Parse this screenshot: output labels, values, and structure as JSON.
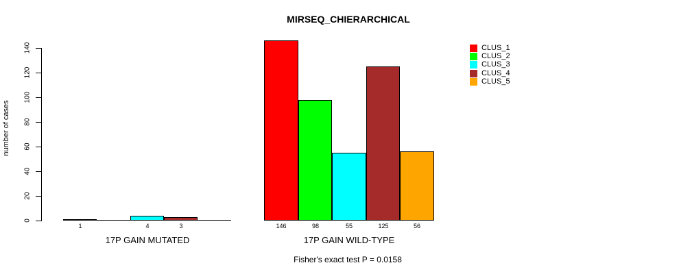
{
  "title": "MIRSEQ_CHIERARCHICAL",
  "footnote": "Fisher's exact test P = 0.0158",
  "chart_data": {
    "type": "bar",
    "title": "MIRSEQ_CHIERARCHICAL",
    "ylabel": "number of cases",
    "ylim": [
      0,
      140
    ],
    "yticks": [
      0,
      20,
      40,
      60,
      80,
      100,
      120,
      140
    ],
    "grid": false,
    "legend_position": "top-right",
    "legend": [
      {
        "label": "CLUS_1",
        "color": "#ff0000"
      },
      {
        "label": "CLUS_2",
        "color": "#00ff00"
      },
      {
        "label": "CLUS_3",
        "color": "#00ffff"
      },
      {
        "label": "CLUS_4",
        "color": "#a52a2a"
      },
      {
        "label": "CLUS_5",
        "color": "#ffa500"
      }
    ],
    "series_colors": [
      "#ff0000",
      "#00ff00",
      "#00ffff",
      "#a52a2a",
      "#ffa500"
    ],
    "groups": [
      {
        "label": "17P GAIN MUTATED",
        "values": [
          1,
          0,
          4,
          3,
          0
        ]
      },
      {
        "label": "17P GAIN WILD-TYPE",
        "values": [
          146,
          98,
          55,
          125,
          56
        ]
      }
    ],
    "annotation": "Fisher's exact test P = 0.0158"
  }
}
